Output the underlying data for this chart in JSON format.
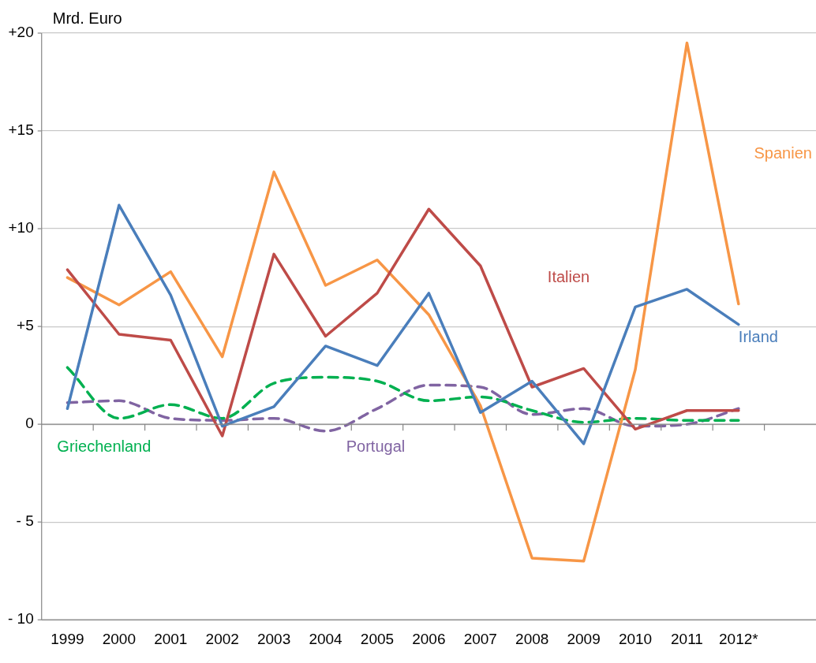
{
  "chart_data": {
    "type": "line",
    "ylabel": "Mrd. Euro",
    "categories": [
      "1999",
      "2000",
      "2001",
      "2002",
      "2003",
      "2004",
      "2005",
      "2006",
      "2007",
      "2008",
      "2009",
      "2010",
      "2011",
      "2012*",
      null
    ],
    "series": [
      {
        "name": "Irland",
        "color": "#4a7ebb",
        "line_style": "solid",
        "values": [
          0.8,
          11.2,
          6.6,
          -0.1,
          0.9,
          4.0,
          3.0,
          6.7,
          0.6,
          2.2,
          -1.0,
          6.0,
          6.9,
          5.1,
          null
        ]
      },
      {
        "name": "Italien",
        "color": "#be4b48",
        "line_style": "solid",
        "values": [
          7.9,
          4.6,
          4.3,
          -0.6,
          8.7,
          4.5,
          6.7,
          11.0,
          8.1,
          1.9,
          2.85,
          -0.25,
          0.7,
          0.7,
          null
        ]
      },
      {
        "name": "Spanien",
        "color": "#f79646",
        "line_style": "solid",
        "values": [
          7.5,
          6.1,
          7.8,
          3.45,
          12.9,
          7.1,
          8.4,
          5.6,
          0.95,
          -6.85,
          -7.0,
          2.8,
          19.5,
          6.15,
          null
        ]
      },
      {
        "name": "Griechenland",
        "color": "#00b050",
        "line_style": "dashed",
        "values": [
          2.9,
          0.3,
          1.0,
          0.3,
          2.1,
          2.4,
          2.2,
          1.2,
          1.4,
          0.7,
          0.1,
          0.3,
          0.2,
          0.2,
          null
        ]
      },
      {
        "name": "Portugal",
        "color": "#8064a2",
        "line_style": "dashed",
        "values": [
          1.1,
          1.2,
          0.3,
          0.2,
          0.3,
          -0.35,
          0.8,
          2.0,
          1.9,
          0.5,
          0.8,
          -0.1,
          0.0,
          0.8,
          null
        ]
      }
    ],
    "ylim": [
      -10,
      20
    ],
    "yticks": [
      {
        "value": -10,
        "label": "- 10"
      },
      {
        "value": -5,
        "label": "- 5"
      },
      0,
      {
        "value": 5,
        "label": "+5"
      },
      {
        "value": 10,
        "label": "+10"
      },
      {
        "value": 15,
        "label": "+15"
      },
      {
        "value": 20,
        "label": "+20"
      }
    ],
    "grid": "y",
    "legend": false,
    "marker": "none"
  }
}
